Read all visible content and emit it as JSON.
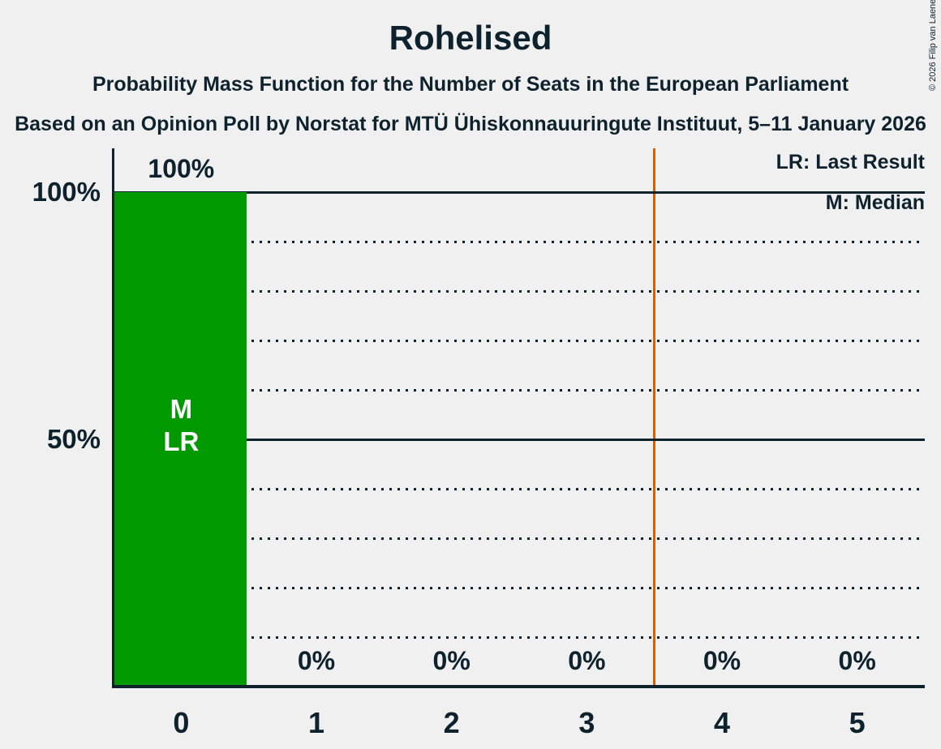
{
  "page": {
    "title": "Rohelised",
    "subtitle": "Probability Mass Function for the Number of Seats in the European Parliament",
    "source_line": "Based on an Opinion Poll by Norstat for MTÜ Ühiskonnauuringute Instituut, 5–11 January 2026",
    "copyright": "© 2026 Filip van Laenen"
  },
  "legend": {
    "last_result": "LR: Last Result",
    "median": "M: Median"
  },
  "colors": {
    "background": "#F0F0F0",
    "text": "#0E222E",
    "bar": "#009900",
    "bar_label": "#FFFFFF",
    "majority_line": "#CF6209"
  },
  "chart_data": {
    "type": "bar",
    "title": "Rohelised",
    "categories": [
      "0",
      "1",
      "2",
      "3",
      "4",
      "5"
    ],
    "values": [
      100,
      0,
      0,
      0,
      0,
      0
    ],
    "value_labels": [
      "100%",
      "0%",
      "0%",
      "0%",
      "0%",
      "0%"
    ],
    "bar_annotations": [
      [
        "M",
        "LR"
      ],
      [],
      [],
      [],
      [],
      []
    ],
    "y_ticks": [
      {
        "value": 100,
        "label": "100%"
      },
      {
        "value": 50,
        "label": "50%"
      }
    ],
    "ylim": [
      0,
      100
    ],
    "solid_gridlines_pct": [
      100,
      50
    ],
    "dotted_gridlines_pct": [
      90,
      80,
      70,
      60,
      40,
      30,
      20,
      10
    ],
    "majority_line_x": 3.5,
    "xlabel": "",
    "ylabel": "",
    "legend_position": "top-right",
    "grid": "horizontal lines every 10%, dotted except solid at 50% and 100%"
  }
}
